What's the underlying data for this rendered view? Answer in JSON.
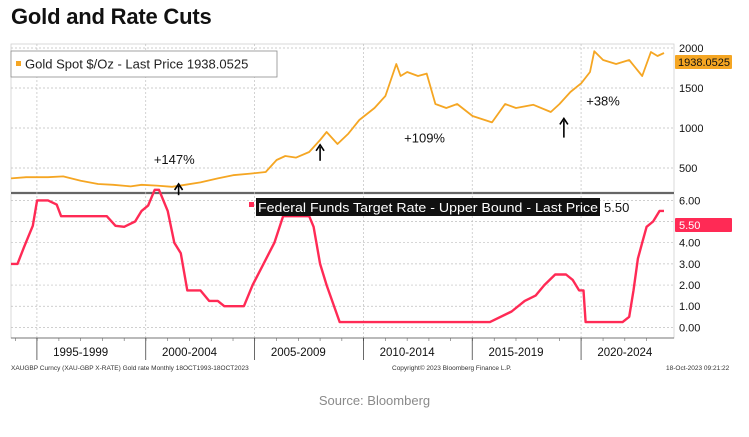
{
  "title": "Gold and Rate Cuts",
  "source": "Source: Bloomberg",
  "colors": {
    "gold": "#f5a623",
    "fed": "#ff2a55",
    "grid": "#bfbfbf",
    "axis": "#333333"
  },
  "chart_data": [
    {
      "type": "line",
      "title": "Gold Spot $/Oz - Last Price 1938.0525",
      "legend_text": "Gold Spot $/Oz - Last Price 1938.0525",
      "last_value_label": "1938.0525",
      "ylim": [
        200,
        2050
      ],
      "y_ticks": [
        500,
        1000,
        1500,
        2000
      ],
      "xlim": [
        1993.8,
        2023.8
      ],
      "series": [
        {
          "name": "Gold Spot $/Oz",
          "x": [
            1993.8,
            1994.5,
            1995.5,
            1996.2,
            1997.0,
            1997.8,
            1998.5,
            1999.3,
            1999.8,
            2000.5,
            2001.2,
            2001.8,
            2002.5,
            2003.3,
            2004.0,
            2004.8,
            2005.5,
            2006.0,
            2006.4,
            2006.9,
            2007.5,
            2008.0,
            2008.3,
            2008.8,
            2009.3,
            2009.8,
            2010.5,
            2011.0,
            2011.5,
            2011.7,
            2012.0,
            2012.5,
            2012.9,
            2013.3,
            2013.8,
            2014.3,
            2015.0,
            2015.9,
            2016.5,
            2017.0,
            2017.8,
            2018.6,
            2019.0,
            2019.5,
            2020.0,
            2020.4,
            2020.6,
            2021.0,
            2021.6,
            2022.2,
            2022.8,
            2023.2,
            2023.5,
            2023.8
          ],
          "values": [
            370,
            385,
            385,
            395,
            340,
            300,
            290,
            270,
            290,
            280,
            265,
            290,
            320,
            370,
            410,
            430,
            450,
            600,
            650,
            630,
            700,
            850,
            950,
            800,
            930,
            1100,
            1250,
            1400,
            1800,
            1650,
            1700,
            1650,
            1680,
            1300,
            1250,
            1300,
            1150,
            1070,
            1300,
            1250,
            1290,
            1200,
            1300,
            1450,
            1560,
            1700,
            1960,
            1850,
            1800,
            1850,
            1650,
            1950,
            1900,
            1938
          ]
        }
      ],
      "annotations": [
        {
          "label": "+147%",
          "x": 2001.3,
          "y": 550
        },
        {
          "label": "+109%",
          "x": 2012.8,
          "y": 820
        },
        {
          "label": "+38%",
          "x": 2021.0,
          "y": 1280
        }
      ],
      "arrows": [
        {
          "x": 2001.5,
          "y_from": 160,
          "y_to": 300
        },
        {
          "x": 2008.0,
          "y_from": 590,
          "y_to": 790
        },
        {
          "x": 2019.2,
          "y_from": 880,
          "y_to": 1120
        }
      ]
    },
    {
      "type": "line",
      "title": "Federal Funds Target Rate - Upper Bound - Last Price 5.50",
      "legend_text": "Federal Funds Target Rate - Upper Bound - Last Price",
      "legend_value": "5.50",
      "last_value_label": "5.50",
      "ylim": [
        -0.5,
        6.3
      ],
      "y_ticks": [
        "6.00",
        "5.00",
        "4.00",
        "3.00",
        "2.00",
        "1.00",
        "0.00"
      ],
      "y_tick_values": [
        6,
        5,
        4,
        3,
        2,
        1,
        0
      ],
      "xlim": [
        1993.8,
        2023.8
      ],
      "series": [
        {
          "name": "Federal Funds Target Rate - Upper Bound",
          "x": [
            1993.8,
            1994.1,
            1994.4,
            1994.6,
            1994.8,
            1995.0,
            1995.5,
            1995.9,
            1996.1,
            1998.0,
            1998.2,
            1998.6,
            1999.0,
            1999.5,
            1999.8,
            2000.1,
            2000.4,
            2000.6,
            2001.0,
            2001.3,
            2001.6,
            2001.9,
            2002.5,
            2002.9,
            2003.3,
            2003.6,
            2004.5,
            2004.9,
            2005.4,
            2005.9,
            2006.3,
            2007.5,
            2007.7,
            2008.0,
            2008.3,
            2008.9,
            2015.8,
            2016.8,
            2017.4,
            2017.9,
            2018.3,
            2018.8,
            2019.3,
            2019.6,
            2019.9,
            2020.1,
            2020.2,
            2021.9,
            2022.2,
            2022.4,
            2022.6,
            2022.8,
            2023.0,
            2023.3,
            2023.6,
            2023.8
          ],
          "values": [
            3.0,
            3.0,
            3.8,
            4.3,
            4.8,
            6.0,
            6.0,
            5.8,
            5.25,
            5.25,
            5.25,
            4.8,
            4.75,
            5.0,
            5.5,
            5.75,
            6.5,
            6.5,
            5.5,
            4.0,
            3.5,
            1.75,
            1.75,
            1.25,
            1.25,
            1.0,
            1.0,
            2.0,
            3.0,
            4.0,
            5.25,
            5.25,
            4.75,
            3.0,
            2.0,
            0.25,
            0.25,
            0.75,
            1.25,
            1.5,
            2.0,
            2.5,
            2.5,
            2.25,
            1.75,
            1.75,
            0.25,
            0.25,
            0.5,
            1.75,
            3.25,
            4.0,
            4.75,
            5.0,
            5.5,
            5.5
          ]
        }
      ]
    }
  ],
  "x_axis": {
    "labels": [
      "1995-1999",
      "2000-2004",
      "2005-2009",
      "2010-2014",
      "2015-2019",
      "2020-2024"
    ],
    "label_centers": [
      1997.0,
      2002.0,
      2007.0,
      2012.0,
      2017.0,
      2022.0
    ],
    "boundaries": [
      1994.99,
      1999.99,
      2004.99,
      2009.99,
      2014.99,
      2019.99
    ],
    "footer_left": "XAUGBP Curncy (XAU-GBP X-RATE) Gold rate   Monthly 18OCT1993-18OCT2023",
    "footer_center": "Copyright© 2023 Bloomberg Finance L.P.",
    "footer_right": "18-Oct-2023 09:21:22"
  }
}
